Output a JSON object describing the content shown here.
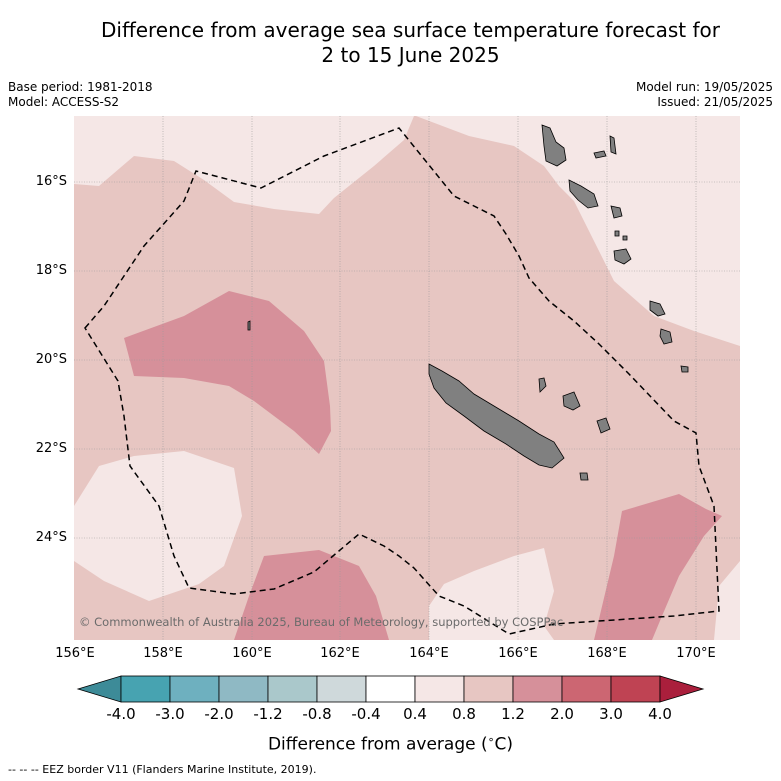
{
  "title_line1": "Difference from average sea surface temperature forecast for",
  "title_line2": "2 to 15 June 2025",
  "meta_left": [
    "Base period: 1981-2018",
    "Model: ACCESS-S2"
  ],
  "meta_right": [
    "Model run: 19/05/2025",
    "Issued: 21/05/2025"
  ],
  "lat_labels": [
    "16°S",
    "18°S",
    "20°S",
    "22°S",
    "24°S"
  ],
  "lon_labels": [
    "156°E",
    "158°E",
    "160°E",
    "162°E",
    "164°E",
    "166°E",
    "168°E",
    "170°E"
  ],
  "copyright": "© Commonwealth of Australia 2025, Bureau of Meteorology, supported by COSPPac",
  "colorbar": {
    "title": "Difference from average (",
    "title_symbol": "∘",
    "title_unit": "C)",
    "ticks": [
      "-4.0",
      "-3.0",
      "-2.0",
      "-1.2",
      "-0.8",
      "-0.4",
      "0.4",
      "0.8",
      "1.2",
      "2.0",
      "3.0",
      "4.0"
    ],
    "colors": [
      "#3d8b98",
      "#47a3b1",
      "#6eb0bf",
      "#8fb9c4",
      "#aac8cb",
      "#cfd9db",
      "#ffffff",
      "#f5e7e6",
      "#e7c6c2",
      "#d6909a",
      "#cc6672",
      "#bf4353",
      "#aa1f3c"
    ]
  },
  "footnote": "--  --  -- EEZ border V11 (Flanders Marine Institute, 2019)."
}
